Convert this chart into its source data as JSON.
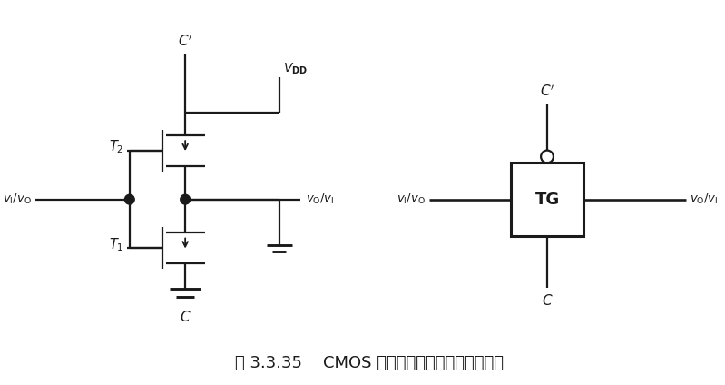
{
  "bg_color": "#ffffff",
  "line_color": "#1a1a1a",
  "title": "图 3.3.35    CMOS 传输门的电路结构和逻辑符号",
  "title_fontsize": 13,
  "fig_width": 7.99,
  "fig_height": 4.24,
  "dpi": 100
}
